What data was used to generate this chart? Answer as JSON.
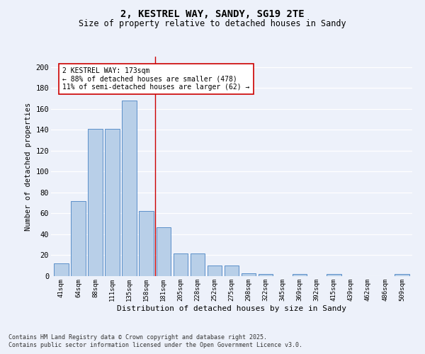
{
  "title1": "2, KESTREL WAY, SANDY, SG19 2TE",
  "title2": "Size of property relative to detached houses in Sandy",
  "xlabel": "Distribution of detached houses by size in Sandy",
  "ylabel": "Number of detached properties",
  "categories": [
    "41sqm",
    "64sqm",
    "88sqm",
    "111sqm",
    "135sqm",
    "158sqm",
    "181sqm",
    "205sqm",
    "228sqm",
    "252sqm",
    "275sqm",
    "298sqm",
    "322sqm",
    "345sqm",
    "369sqm",
    "392sqm",
    "415sqm",
    "439sqm",
    "462sqm",
    "486sqm",
    "509sqm"
  ],
  "values": [
    12,
    72,
    141,
    141,
    168,
    62,
    47,
    22,
    22,
    10,
    10,
    3,
    2,
    0,
    2,
    0,
    2,
    0,
    0,
    0,
    2
  ],
  "bar_color": "#b8cfe8",
  "bar_edge_color": "#5b8fc9",
  "background_color": "#edf1fa",
  "grid_color": "#ffffff",
  "vline_x_idx": 5.5,
  "vline_color": "#cc0000",
  "annotation_text_line1": "2 KESTREL WAY: 173sqm",
  "annotation_text_line2": "← 88% of detached houses are smaller (478)",
  "annotation_text_line3": "11% of semi-detached houses are larger (62) →",
  "annotation_box_color": "#ffffff",
  "annotation_box_edge": "#cc0000",
  "footer1": "Contains HM Land Registry data © Crown copyright and database right 2025.",
  "footer2": "Contains public sector information licensed under the Open Government Licence v3.0.",
  "ylim": [
    0,
    210
  ],
  "yticks": [
    0,
    20,
    40,
    60,
    80,
    100,
    120,
    140,
    160,
    180,
    200
  ]
}
